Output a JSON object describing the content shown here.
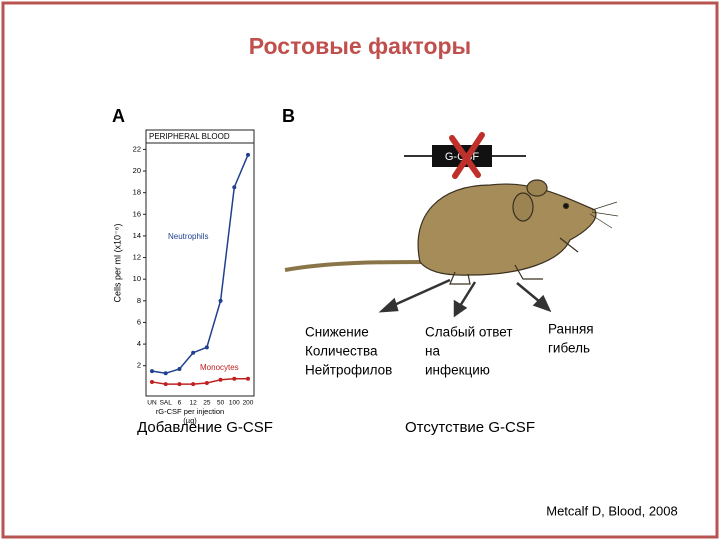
{
  "title": "Ростовые факторы",
  "panel_a": {
    "label": "A",
    "caption": "Добавление G-CSF"
  },
  "panel_b": {
    "label": "B",
    "gene": "G-CSF",
    "outcomes": [
      [
        "Снижение",
        "Количества",
        "Нейтрофилов"
      ],
      [
        "Слабый ответ",
        "на",
        "инфекцию"
      ],
      [
        "Ранняя",
        "гибель"
      ]
    ],
    "caption": "Отсутствие G-CSF"
  },
  "citation": "Metcalf D, Blood, 2008",
  "chart_data": {
    "type": "line",
    "title": "PERIPHERAL BLOOD",
    "y_label": "Cells per ml (x10⁻⁶)",
    "x_label": [
      "rG-CSF per injection",
      "(µg)"
    ],
    "categories": [
      "UN",
      "SAL",
      "6",
      "12",
      "25",
      "50",
      "100",
      "200"
    ],
    "series": [
      {
        "name": "Neutrophils",
        "color": "#1f3f8f",
        "values": [
          1.5,
          1.3,
          1.7,
          3.2,
          3.7,
          8,
          18.5,
          21.5
        ]
      },
      {
        "name": "Monocytes",
        "color": "#c02020",
        "values": [
          0.5,
          0.3,
          0.3,
          0.3,
          0.4,
          0.7,
          0.8,
          0.8
        ]
      }
    ],
    "ylim": [
      -0.8,
      22.5
    ],
    "yticks": [
      2,
      4,
      6,
      8,
      10,
      12,
      14,
      16,
      18,
      20,
      22
    ]
  }
}
